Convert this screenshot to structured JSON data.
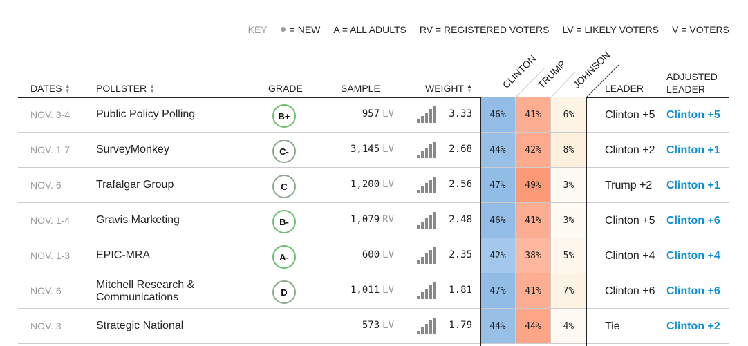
{
  "key": {
    "label": "KEY",
    "items": [
      "= NEW",
      "A = ALL ADULTS",
      "RV = REGISTERED VOTERS",
      "LV = LIKELY VOTERS",
      "V = VOTERS"
    ]
  },
  "headers": {
    "dates": "DATES",
    "pollster": "POLLSTER",
    "grade": "GRADE",
    "sample": "SAMPLE",
    "weight": "WEIGHT",
    "clinton": "CLINTON",
    "trump": "TRUMP",
    "johnson": "JOHNSON",
    "leader": "LEADER",
    "adjusted_leader_1": "ADJUSTED",
    "adjusted_leader_2": "LEADER"
  },
  "colors": {
    "adjusted": "#0b8fd8",
    "grade_high": "#6cbf6c",
    "grade_low": "#8fa88f"
  },
  "rows": [
    {
      "date": "NOV. 3-4",
      "pollster": "Public Policy Polling",
      "grade": "B+",
      "grade_color": "#6cbf6c",
      "sample": "957",
      "population": "LV",
      "weight": "3.33",
      "clinton": "46%",
      "trump": "41%",
      "johnson": "6%",
      "c_color": "#93bde6",
      "t_color": "#fdae92",
      "j_color": "#fdf4e6",
      "leader": "Clinton +5",
      "adjusted": "Clinton +5"
    },
    {
      "date": "NOV. 1-7",
      "pollster": "SurveyMonkey",
      "grade": "C-",
      "grade_color": "#8fa88f",
      "sample": "3,145",
      "population": "LV",
      "weight": "2.68",
      "clinton": "44%",
      "trump": "42%",
      "johnson": "8%",
      "c_color": "#98c0e7",
      "t_color": "#fdaa8d",
      "j_color": "#fdf0dd",
      "leader": "Clinton +2",
      "adjusted": "Clinton +1"
    },
    {
      "date": "NOV. 6",
      "pollster": "Trafalgar Group",
      "grade": "C",
      "grade_color": "#8fa88f",
      "sample": "1,200",
      "population": "LV",
      "weight": "2.56",
      "clinton": "47%",
      "trump": "49%",
      "johnson": "3%",
      "c_color": "#91bce6",
      "t_color": "#fc9a78",
      "j_color": "#fefaf4",
      "leader": "Trump +2",
      "adjusted": "Clinton +1"
    },
    {
      "date": "NOV. 1-4",
      "pollster": "Gravis Marketing",
      "grade": "B-",
      "grade_color": "#6cbf6c",
      "sample": "1,079",
      "population": "RV",
      "weight": "2.48",
      "clinton": "46%",
      "trump": "41%",
      "johnson": "3%",
      "c_color": "#93bde6",
      "t_color": "#fdae92",
      "j_color": "#fefaf4",
      "leader": "Clinton +5",
      "adjusted": "Clinton +6"
    },
    {
      "date": "NOV. 1-3",
      "pollster": "EPIC-MRA",
      "grade": "A-",
      "grade_color": "#6cbf6c",
      "sample": "600",
      "population": "LV",
      "weight": "2.35",
      "clinton": "42%",
      "trump": "38%",
      "johnson": "5%",
      "c_color": "#a3c8ec",
      "t_color": "#fdb89f",
      "j_color": "#fef7ee",
      "leader": "Clinton +4",
      "adjusted": "Clinton +4"
    },
    {
      "date": "NOV. 6",
      "pollster": "Mitchell Research & Communications",
      "grade": "D",
      "grade_color": "#8fa88f",
      "sample": "1,011",
      "population": "LV",
      "weight": "1.81",
      "clinton": "47%",
      "trump": "41%",
      "johnson": "7%",
      "c_color": "#91bce6",
      "t_color": "#fdae92",
      "j_color": "#fdf3e5",
      "leader": "Clinton +6",
      "adjusted": "Clinton +6"
    },
    {
      "date": "NOV. 3",
      "pollster": "Strategic National",
      "grade": "",
      "grade_color": "",
      "sample": "573",
      "population": "LV",
      "weight": "1.79",
      "clinton": "44%",
      "trump": "44%",
      "johnson": "4%",
      "c_color": "#98c0e7",
      "t_color": "#fca587",
      "j_color": "#fef9f2",
      "leader": "Tie",
      "adjusted": "Clinton +2"
    }
  ]
}
